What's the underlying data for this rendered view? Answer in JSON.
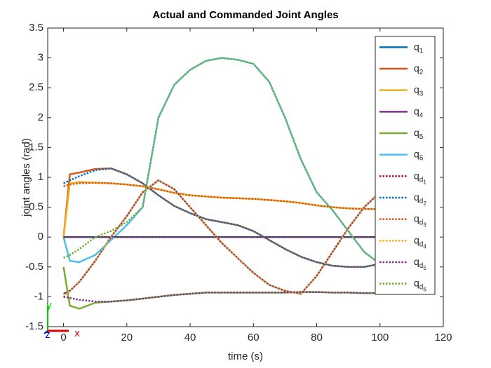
{
  "chart_data": {
    "type": "line",
    "title": "Actual and Commanded Joint Angles",
    "x_label": "time (s)",
    "y_label": "joint angles (rad)",
    "x": [
      0,
      2,
      5,
      10,
      15,
      20,
      25,
      30,
      35,
      40,
      45,
      50,
      55,
      60,
      65,
      70,
      75,
      80,
      85,
      90,
      95,
      100
    ],
    "series": [
      {
        "name": "q_1",
        "color": "#0072BD",
        "style": "solid",
        "values": [
          0,
          0,
          0,
          0,
          0,
          0,
          0,
          0,
          0,
          0,
          0,
          0,
          0,
          0,
          0,
          0,
          0,
          0,
          0,
          0,
          0,
          0
        ]
      },
      {
        "name": "q_2",
        "color": "#D95319",
        "style": "solid",
        "values": [
          0,
          1.05,
          1.08,
          1.14,
          1.15,
          1.05,
          0.9,
          0.7,
          0.52,
          0.4,
          0.3,
          0.25,
          0.2,
          0.1,
          -0.05,
          -0.2,
          -0.33,
          -0.42,
          -0.48,
          -0.5,
          -0.5,
          -0.45
        ]
      },
      {
        "name": "q_3",
        "color": "#EDB120",
        "style": "solid",
        "values": [
          0,
          0.9,
          0.92,
          0.91,
          0.9,
          0.88,
          0.85,
          0.8,
          0.74,
          0.7,
          0.68,
          0.66,
          0.65,
          0.64,
          0.62,
          0.6,
          0.57,
          0.53,
          0.5,
          0.48,
          0.47,
          0.47
        ]
      },
      {
        "name": "q_4",
        "color": "#7E2F8E",
        "style": "solid",
        "values": [
          -0.95,
          -0.9,
          -0.75,
          -0.4,
          0,
          0.35,
          0.75,
          0.95,
          0.8,
          0.5,
          0.2,
          -0.1,
          -0.35,
          -0.6,
          -0.8,
          -0.9,
          -0.95,
          -0.65,
          -0.25,
          0.15,
          0.5,
          0.75
        ]
      },
      {
        "name": "q_5",
        "color": "#77AC30",
        "style": "solid",
        "values": [
          -0.5,
          -1.15,
          -1.2,
          -1.1,
          -1.08,
          -1.06,
          -1.03,
          -1,
          -0.97,
          -0.95,
          -0.93,
          -0.93,
          -0.93,
          -0.93,
          -0.93,
          -0.93,
          -0.92,
          -0.92,
          -0.93,
          -0.93,
          -0.94,
          -0.94
        ]
      },
      {
        "name": "q_6",
        "color": "#4DBEEE",
        "style": "solid",
        "values": [
          0,
          -0.4,
          -0.42,
          -0.3,
          -0.05,
          0.2,
          0.5,
          2,
          2.55,
          2.8,
          2.95,
          3,
          2.97,
          2.9,
          2.6,
          2,
          1.3,
          0.75,
          0.45,
          0.1,
          -0.25,
          -0.45
        ]
      },
      {
        "name": "q_{d_1}",
        "color": "#A2142F",
        "style": "dotted",
        "values": [
          0,
          0,
          0,
          0,
          0,
          0,
          0,
          0,
          0,
          0,
          0,
          0,
          0,
          0,
          0,
          0,
          0,
          0,
          0,
          0,
          0,
          0
        ]
      },
      {
        "name": "q_{d_2}",
        "color": "#0072BD",
        "style": "dotted",
        "values": [
          0.9,
          0.95,
          1.02,
          1.12,
          1.15,
          1.05,
          0.9,
          0.7,
          0.52,
          0.4,
          0.3,
          0.25,
          0.2,
          0.1,
          -0.05,
          -0.2,
          -0.33,
          -0.42,
          -0.48,
          -0.5,
          -0.5,
          -0.45
        ]
      },
      {
        "name": "q_{d_3}",
        "color": "#D95319",
        "style": "dotted",
        "values": [
          0.85,
          0.88,
          0.9,
          0.91,
          0.9,
          0.88,
          0.85,
          0.8,
          0.74,
          0.7,
          0.68,
          0.66,
          0.65,
          0.64,
          0.62,
          0.6,
          0.57,
          0.53,
          0.5,
          0.48,
          0.47,
          0.47
        ]
      },
      {
        "name": "q_{d_4}",
        "color": "#EDB120",
        "style": "dotted",
        "values": [
          -1,
          -0.9,
          -0.75,
          -0.4,
          0,
          0.35,
          0.75,
          0.95,
          0.8,
          0.5,
          0.2,
          -0.1,
          -0.35,
          -0.6,
          -0.8,
          -0.9,
          -0.95,
          -0.65,
          -0.25,
          0.15,
          0.5,
          0.75
        ]
      },
      {
        "name": "q_{d_5}",
        "color": "#7E2F8E",
        "style": "dotted",
        "values": [
          -1,
          -1.02,
          -1.05,
          -1.08,
          -1.08,
          -1.06,
          -1.03,
          -1,
          -0.97,
          -0.95,
          -0.93,
          -0.93,
          -0.93,
          -0.93,
          -0.93,
          -0.93,
          -0.92,
          -0.92,
          -0.93,
          -0.93,
          -0.94,
          -0.94
        ]
      },
      {
        "name": "q_{d_6}",
        "color": "#77AC30",
        "style": "dotted",
        "values": [
          -0.35,
          -0.3,
          -0.2,
          0,
          0.1,
          0.25,
          0.5,
          2,
          2.55,
          2.8,
          2.95,
          3,
          2.97,
          2.9,
          2.6,
          2,
          1.3,
          0.75,
          0.45,
          0.1,
          -0.25,
          -0.45
        ]
      }
    ],
    "xlim": [
      -5,
      120
    ],
    "ylim": [
      -1.5,
      3.5
    ],
    "xticks": [
      0,
      20,
      40,
      60,
      80,
      100,
      120
    ],
    "yticks": [
      -1.5,
      -1,
      -0.5,
      0,
      0.5,
      1,
      1.5,
      2,
      2.5,
      3,
      3.5
    ],
    "grid": false,
    "legend": "top-right",
    "annotations": [
      "y",
      "z",
      "x"
    ]
  }
}
